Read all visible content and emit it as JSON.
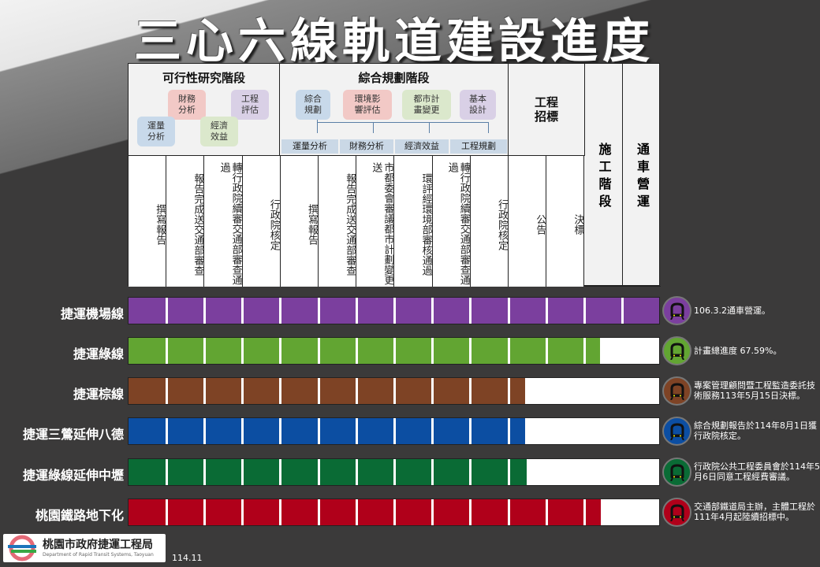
{
  "title": "三心六線軌道建設進度",
  "header": {
    "feasibility": {
      "title": "可行性研究階段",
      "boxes": [
        {
          "label": "財務\n分析",
          "color": "#f2c9c6"
        },
        {
          "label": "工程\n評估",
          "color": "#d9d0e6"
        },
        {
          "label": "運量\n分析",
          "color": "#c8d9ea"
        },
        {
          "label": "經濟\n效益",
          "color": "#dbe8cc"
        }
      ]
    },
    "planning": {
      "title": "綜合規劃階段",
      "boxes": [
        {
          "label": "綜合\n規劃",
          "color": "#c8d9ea"
        },
        {
          "label": "環境影\n響評估",
          "color": "#f2c9c6"
        },
        {
          "label": "都市計\n畫變更",
          "color": "#dbe8cc"
        },
        {
          "label": "基本\n設計",
          "color": "#d9d0e6"
        }
      ],
      "subs": [
        "運量分析",
        "財務分析",
        "經濟效益",
        "工程規劃"
      ]
    },
    "tender": "工程招標",
    "construction": "施工階段",
    "operation": "通車營運",
    "steps": [
      "撰寫報告",
      "報告完成送交通部審查",
      "轉行政院續審交通部審查通過",
      "行政院核定",
      "撰寫報告",
      "報告完成送交通部審查",
      "市都委會審議都市計劃變更送",
      "環評經環境部審核通過",
      "轉行政院續審交通部審查通過",
      "行政院核定",
      "公告",
      "決標"
    ]
  },
  "lines": [
    {
      "name": "捷運機場線",
      "color": "#7b3f9e",
      "progress": 1.0,
      "note": "106.3.2通車營運。"
    },
    {
      "name": "捷運綠線",
      "color": "#62a532",
      "progress": 0.889,
      "note": "計畫總進度 67.59%。"
    },
    {
      "name": "捷運棕線",
      "color": "#7e4325",
      "progress": 0.747,
      "note": "專案管理顧問暨工程監造委託技術服務113年5月15日決標。"
    },
    {
      "name": "捷運三鶯延伸八德",
      "color": "#0c4ea2",
      "progress": 0.747,
      "note": "綜合規劃報告於114年8月1日獲行政院核定。"
    },
    {
      "name": "捷運綠線延伸中壢",
      "color": "#0a6b35",
      "progress": 0.751,
      "note": "行政院公共工程委員會於114年5月6日同意工程經費審議。"
    },
    {
      "name": "桃園鐵路地下化",
      "color": "#b0001a",
      "progress": 0.89,
      "note": "交通部鐵道局主辦，主體工程於111年4月起陸續招標中。"
    }
  ],
  "footer": {
    "logo": "桃園市政府捷運工程局",
    "logo_en": "Department of Rapid Transit Systems, Taoyuan",
    "date": "114.11"
  }
}
